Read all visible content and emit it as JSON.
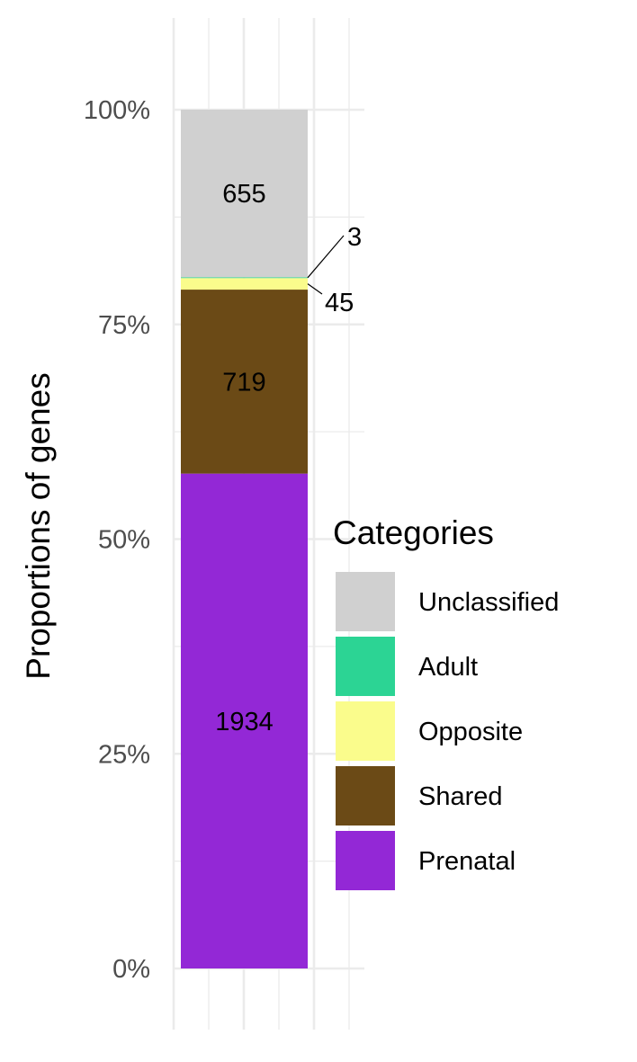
{
  "chart_data": {
    "type": "bar",
    "stacked": true,
    "normalized": true,
    "categories": [
      ""
    ],
    "series": [
      {
        "name": "Prenatal",
        "values": [
          1934
        ],
        "color": "#9328D6"
      },
      {
        "name": "Shared",
        "values": [
          719
        ],
        "color": "#6B4A16"
      },
      {
        "name": "Opposite",
        "values": [
          45
        ],
        "color": "#FAFC8C"
      },
      {
        "name": "Adult",
        "values": [
          3
        ],
        "color": "#2CD494"
      },
      {
        "name": "Unclassified",
        "values": [
          655
        ],
        "color": "#D0D0D0"
      }
    ],
    "title": "",
    "xlabel": "",
    "ylabel": "Proportions of genes",
    "ylim": [
      0,
      1
    ],
    "y_ticks": [
      {
        "value": 0,
        "label": "0%"
      },
      {
        "value": 0.25,
        "label": "25%"
      },
      {
        "value": 0.5,
        "label": "50%"
      },
      {
        "value": 0.75,
        "label": "75%"
      },
      {
        "value": 1,
        "label": "100%"
      }
    ],
    "grid": true,
    "legend": {
      "title": "Categories",
      "placement": "right",
      "order": [
        "Unclassified",
        "Adult",
        "Opposite",
        "Shared",
        "Prenatal"
      ]
    },
    "bar_labels": [
      "1934",
      "719",
      "45",
      "3",
      "655"
    ]
  }
}
